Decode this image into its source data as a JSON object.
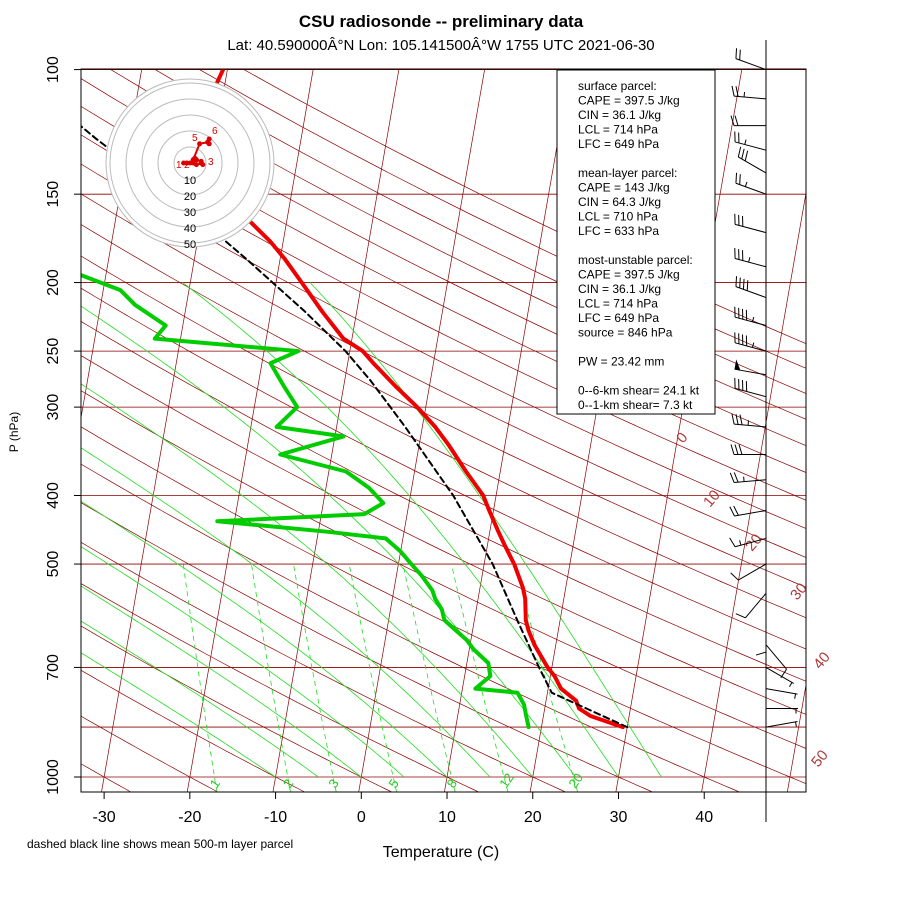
{
  "title": "CSU radiosonde -- preliminary data",
  "subtitle": "Lat: 40.590000Â°N Lon: 105.141500Â°W    1755 UTC  2021-06-30",
  "footnote": "dashed black line shows mean 500-m layer parcel",
  "info_box": [
    "surface parcel:",
    "CAPE = 397.5 J/kg",
    "CIN = 36.1 J/kg",
    "LCL = 714 hPa",
    "LFC = 649 hPa",
    "",
    "mean-layer parcel:",
    "CAPE = 143 J/kg",
    "CIN = 64.3 J/kg",
    "LCL = 710 hPa",
    "LFC = 633 hPa",
    "",
    "most-unstable parcel:",
    "CAPE = 397.5 J/kg",
    "CIN = 36.1 J/kg",
    "LCL = 714 hPa",
    "LFC = 649 hPa",
    "source = 846 hPa",
    "",
    "PW =  23.42 mm",
    "",
    "0--6-km shear= 24.1 kt",
    "0--1-km shear= 7.3 kt"
  ],
  "colors": {
    "temperature": "#ee0000",
    "dewpoint": "#00cc00",
    "parcel": "#000000",
    "isobar": "#8b0000",
    "dry_adiabat": "#8b0000",
    "mixing_ratio": "#22dd22",
    "moist_adiabat": "#22dd22"
  },
  "chart_data": {
    "type": "line",
    "chart_kind": "skew-T log-p diagram",
    "xlabel": "Temperature (C)",
    "ylabel": "P (hPa)",
    "x_ticks": [
      "-30",
      "-20",
      "-10",
      "0",
      "10",
      "20",
      "30",
      "40"
    ],
    "x_tick_values": [
      -30,
      -20,
      -10,
      0,
      10,
      20,
      30,
      40
    ],
    "y_ticks": [
      "100",
      "150",
      "200",
      "250",
      "300",
      "400",
      "500",
      "700",
      "1000"
    ],
    "y_tick_values": [
      100,
      150,
      200,
      250,
      300,
      400,
      500,
      700,
      1000
    ],
    "y_scale": "log",
    "ylim": [
      100,
      1050
    ],
    "xlim_at_1000hPa": [
      -36,
      45
    ],
    "isobars": [
      100,
      150,
      200,
      250,
      300,
      400,
      500,
      700,
      850,
      1000
    ],
    "theta_labels": [
      "0",
      "10",
      "20",
      "30",
      "40",
      "50"
    ],
    "mixing_ratio_labels": [
      "1",
      "2",
      "3",
      "5",
      "8",
      "12",
      "20"
    ],
    "series": [
      {
        "name": "temperature",
        "points": [
          [
            29.5,
            850
          ],
          [
            25.5,
            820
          ],
          [
            24.0,
            800
          ],
          [
            23.5,
            780
          ],
          [
            21.5,
            750
          ],
          [
            20.5,
            720
          ],
          [
            19.5,
            700
          ],
          [
            17.5,
            650
          ],
          [
            16.5,
            620
          ],
          [
            16.0,
            600
          ],
          [
            15.5,
            560
          ],
          [
            15.0,
            540
          ],
          [
            13.5,
            500
          ],
          [
            12.0,
            470
          ],
          [
            11.0,
            450
          ],
          [
            9.5,
            420
          ],
          [
            8.5,
            400
          ],
          [
            6.0,
            370
          ],
          [
            3.5,
            340
          ],
          [
            1.5,
            320
          ],
          [
            -1.0,
            300
          ],
          [
            -4.0,
            280
          ],
          [
            -7.0,
            260
          ],
          [
            -8.5,
            250
          ],
          [
            -11.0,
            240
          ],
          [
            -14.0,
            220
          ],
          [
            -17.0,
            200
          ],
          [
            -19.5,
            185
          ],
          [
            -21.5,
            175
          ],
          [
            -24.0,
            165
          ],
          [
            -27.0,
            155
          ],
          [
            -30.5,
            140
          ],
          [
            -32.5,
            130
          ],
          [
            -34.5,
            120
          ],
          [
            -35.0,
            115
          ],
          [
            -33.0,
            110
          ],
          [
            -31.0,
            105
          ],
          [
            -30.5,
            100
          ]
        ]
      },
      {
        "name": "dewpoint",
        "points": [
          [
            18.5,
            850
          ],
          [
            18.0,
            820
          ],
          [
            17.5,
            790
          ],
          [
            16.5,
            760
          ],
          [
            11.5,
            750
          ],
          [
            13.0,
            720
          ],
          [
            12.5,
            690
          ],
          [
            10.5,
            660
          ],
          [
            9.5,
            640
          ],
          [
            8.0,
            620
          ],
          [
            6.5,
            600
          ],
          [
            6.0,
            580
          ],
          [
            5.0,
            560
          ],
          [
            4.5,
            545
          ],
          [
            3.0,
            520
          ],
          [
            1.5,
            500
          ],
          [
            0.0,
            480
          ],
          [
            -2.0,
            460
          ],
          [
            -9.0,
            450
          ],
          [
            -22.0,
            435
          ],
          [
            -5.0,
            425
          ],
          [
            -3.0,
            410
          ],
          [
            -5.0,
            390
          ],
          [
            -8.0,
            370
          ],
          [
            -16.0,
            350
          ],
          [
            -9.0,
            330
          ],
          [
            -17.0,
            320
          ],
          [
            -15.0,
            300
          ],
          [
            -17.0,
            280
          ],
          [
            -19.0,
            260
          ],
          [
            -16.0,
            250
          ],
          [
            -33.0,
            240
          ],
          [
            -32.0,
            230
          ],
          [
            -36.0,
            215
          ],
          [
            -38.0,
            205
          ],
          [
            -43.0,
            195
          ],
          [
            -48.0,
            180
          ],
          [
            -53.0,
            170
          ],
          [
            -58.0,
            160
          ]
        ]
      },
      {
        "name": "mean 500-m layer parcel",
        "points": [
          [
            30.0,
            850
          ],
          [
            20.5,
            760
          ],
          [
            18.5,
            700
          ],
          [
            15.0,
            600
          ],
          [
            11.0,
            500
          ],
          [
            5.0,
            400
          ],
          [
            -2.0,
            320
          ],
          [
            -7.0,
            275
          ],
          [
            -10.5,
            250
          ],
          [
            -16.0,
            220
          ],
          [
            -24.0,
            185
          ],
          [
            -31.0,
            160
          ],
          [
            -38.0,
            140
          ],
          [
            -44.0,
            125
          ],
          [
            -55.0,
            100
          ]
        ]
      }
    ],
    "hodograph": {
      "ring_labels": [
        "10",
        "20",
        "30",
        "40",
        "50"
      ],
      "point_labels": [
        "1",
        "2",
        "3",
        "5",
        "6"
      ],
      "points": [
        [
          -4,
          0
        ],
        [
          -2,
          0
        ],
        [
          0,
          0
        ],
        [
          2,
          0
        ],
        [
          4,
          -1
        ],
        [
          7,
          0
        ],
        [
          8,
          -1
        ],
        [
          7,
          1
        ],
        [
          4,
          2
        ],
        [
          3,
          3
        ],
        [
          2,
          2
        ],
        [
          6,
          12
        ],
        [
          11,
          13
        ],
        [
          12,
          15
        ],
        [
          12,
          12
        ]
      ]
    },
    "wind_profile": [
      [
        100,
        290,
        20
      ],
      [
        110,
        275,
        25
      ],
      [
        120,
        270,
        20
      ],
      [
        130,
        285,
        25
      ],
      [
        140,
        300,
        30
      ],
      [
        150,
        290,
        25
      ],
      [
        170,
        285,
        30
      ],
      [
        190,
        285,
        35
      ],
      [
        210,
        290,
        40
      ],
      [
        230,
        285,
        45
      ],
      [
        250,
        285,
        45
      ],
      [
        270,
        280,
        50
      ],
      [
        290,
        285,
        40
      ],
      [
        320,
        275,
        35
      ],
      [
        350,
        270,
        30
      ],
      [
        380,
        265,
        25
      ],
      [
        420,
        260,
        20
      ],
      [
        460,
        255,
        15
      ],
      [
        500,
        240,
        10
      ],
      [
        550,
        220,
        10
      ],
      [
        600,
        180,
        8
      ],
      [
        650,
        140,
        8
      ],
      [
        700,
        120,
        7
      ],
      [
        750,
        100,
        6
      ],
      [
        800,
        90,
        5
      ],
      [
        850,
        80,
        5
      ]
    ]
  }
}
